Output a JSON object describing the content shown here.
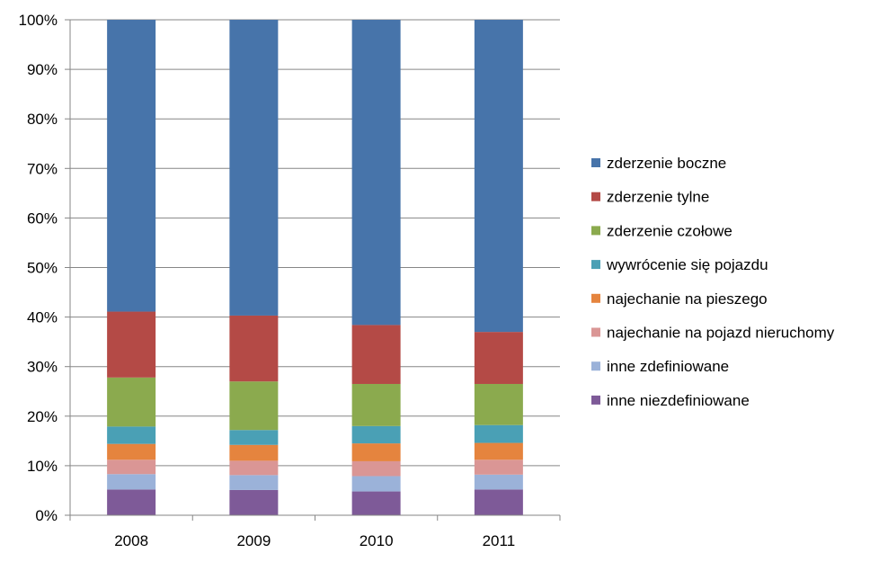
{
  "chart_data": {
    "type": "bar",
    "stacked": true,
    "percent_stacked": true,
    "categories": [
      "2008",
      "2009",
      "2010",
      "2011"
    ],
    "ylim": [
      0,
      100
    ],
    "y_ticks": [
      "0%",
      "10%",
      "20%",
      "30%",
      "40%",
      "50%",
      "60%",
      "70%",
      "80%",
      "90%",
      "100%"
    ],
    "grid": true,
    "legend_position": "right",
    "series": [
      {
        "name": "inne niezdefiniowane",
        "color": "#7E5A98",
        "values": [
          5.2,
          5.1,
          4.8,
          5.2
        ]
      },
      {
        "name": "inne zdefiniowane",
        "color": "#9BB2D9",
        "values": [
          3.1,
          3.0,
          3.1,
          3.0
        ]
      },
      {
        "name": "najechanie na pojazd nieruchomy",
        "color": "#DA9695",
        "values": [
          2.9,
          2.9,
          3.0,
          3.0
        ]
      },
      {
        "name": "najechanie na pieszego",
        "color": "#E5843E",
        "values": [
          3.2,
          3.2,
          3.6,
          3.4
        ]
      },
      {
        "name": "wywrócenie się pojazdu",
        "color": "#4AA0B5",
        "values": [
          3.5,
          3.0,
          3.5,
          3.6
        ]
      },
      {
        "name": "zderzenie czołowe",
        "color": "#8BAA4E",
        "values": [
          9.9,
          9.8,
          8.5,
          8.3
        ]
      },
      {
        "name": "zderzenie tylne",
        "color": "#B44A46",
        "values": [
          13.3,
          13.3,
          11.9,
          10.5
        ]
      },
      {
        "name": "zderzenie boczne",
        "color": "#4774AA",
        "values": [
          58.9,
          59.7,
          61.6,
          63.0
        ]
      }
    ]
  }
}
